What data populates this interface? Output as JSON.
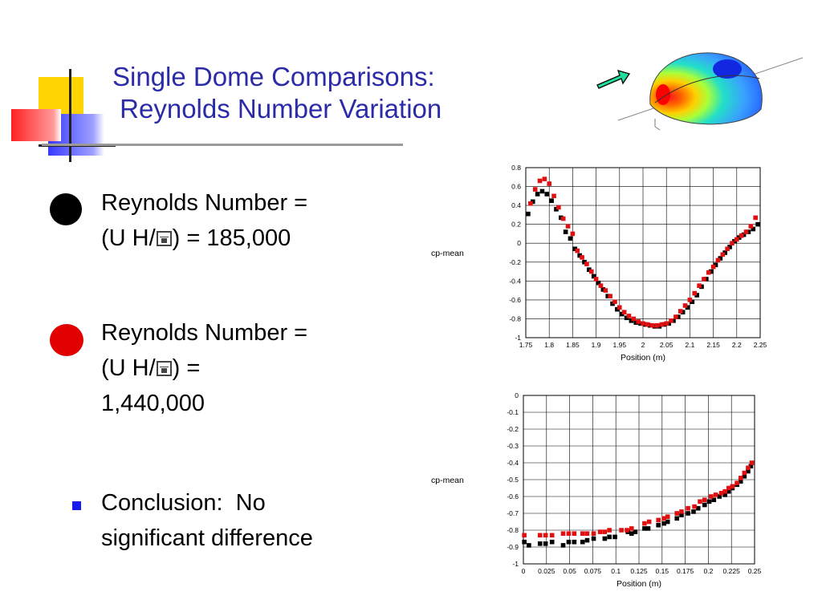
{
  "slide": {
    "title_line1": "Single Dome Comparisons:",
    "title_line2": " Reynolds Number Variation",
    "bullets": [
      {
        "marker": "black-circle",
        "line1": "Reynolds Number =",
        "line2a": "(U H/",
        "line2b": ") = 185,000",
        "glyph_icon": "floppy-glyph-icon"
      },
      {
        "marker": "red-circle",
        "line1": "Reynolds Number =",
        "line2a": "(U H/",
        "line2b": ") =",
        "line3": "1,440,000",
        "glyph_icon": "floppy-glyph-icon"
      },
      {
        "marker": "blue-square",
        "line1": "Conclusion:  No",
        "line2": "significant difference"
      }
    ]
  },
  "colors": {
    "title": "#2b2ba8",
    "series_low": "#000000",
    "series_high": "#e01010",
    "accent_red": "#e00000",
    "bullet_blue": "#1a1aee"
  },
  "chart_data": [
    {
      "type": "scatter",
      "title": "",
      "xlabel": "Position (m)",
      "ylabel": "cp-mean",
      "xlim": [
        1.75,
        2.25
      ],
      "ylim": [
        -1,
        0.8
      ],
      "xticks": [
        "1.75",
        "1.8",
        "1.85",
        "1.9",
        "1.95",
        "2",
        "2.05",
        "2.1",
        "2.15",
        "2.2",
        "2.25"
      ],
      "yticks": [
        "0.8",
        "0.6",
        "0.4",
        "0.2",
        "0",
        "-0.2",
        "-0.4",
        "-0.6",
        "-0.8",
        "-1"
      ],
      "grid": true,
      "series": [
        {
          "color": "#000000",
          "x": [
            1.755,
            1.765,
            1.775,
            1.785,
            1.795,
            1.805,
            1.815,
            1.825,
            1.835,
            1.845,
            1.855,
            1.865,
            1.875,
            1.885,
            1.895,
            1.905,
            1.915,
            1.925,
            1.935,
            1.945,
            1.955,
            1.965,
            1.975,
            1.985,
            1.995,
            2.005,
            2.015,
            2.025,
            2.035,
            2.045,
            2.055,
            2.065,
            2.075,
            2.085,
            2.095,
            2.105,
            2.115,
            2.125,
            2.135,
            2.145,
            2.155,
            2.165,
            2.175,
            2.185,
            2.195,
            2.205,
            2.215,
            2.225,
            2.235,
            2.245
          ],
          "y": [
            0.31,
            0.44,
            0.52,
            0.55,
            0.52,
            0.45,
            0.36,
            0.27,
            0.12,
            0.05,
            -0.06,
            -0.13,
            -0.2,
            -0.28,
            -0.35,
            -0.42,
            -0.49,
            -0.56,
            -0.64,
            -0.7,
            -0.75,
            -0.79,
            -0.82,
            -0.84,
            -0.85,
            -0.86,
            -0.87,
            -0.88,
            -0.88,
            -0.86,
            -0.85,
            -0.82,
            -0.78,
            -0.73,
            -0.68,
            -0.62,
            -0.55,
            -0.46,
            -0.38,
            -0.3,
            -0.23,
            -0.16,
            -0.1,
            -0.04,
            0.02,
            0.06,
            0.09,
            0.12,
            0.15,
            0.2
          ]
        },
        {
          "color": "#e01010",
          "x": [
            1.76,
            1.77,
            1.78,
            1.79,
            1.8,
            1.81,
            1.82,
            1.83,
            1.84,
            1.85,
            1.86,
            1.87,
            1.88,
            1.89,
            1.9,
            1.91,
            1.92,
            1.93,
            1.94,
            1.95,
            1.96,
            1.97,
            1.98,
            1.99,
            2.0,
            2.01,
            2.02,
            2.03,
            2.04,
            2.05,
            2.06,
            2.07,
            2.08,
            2.09,
            2.1,
            2.11,
            2.12,
            2.13,
            2.14,
            2.15,
            2.16,
            2.17,
            2.18,
            2.19,
            2.2,
            2.21,
            2.22,
            2.23,
            2.24
          ],
          "y": [
            0.42,
            0.57,
            0.66,
            0.68,
            0.63,
            0.5,
            0.38,
            0.26,
            0.18,
            0.1,
            -0.08,
            -0.15,
            -0.22,
            -0.3,
            -0.38,
            -0.45,
            -0.5,
            -0.56,
            -0.62,
            -0.68,
            -0.73,
            -0.77,
            -0.8,
            -0.83,
            -0.85,
            -0.86,
            -0.87,
            -0.87,
            -0.86,
            -0.85,
            -0.82,
            -0.78,
            -0.72,
            -0.66,
            -0.6,
            -0.53,
            -0.45,
            -0.38,
            -0.31,
            -0.25,
            -0.18,
            -0.12,
            -0.06,
            0.0,
            0.04,
            0.08,
            0.12,
            0.18,
            0.27
          ]
        }
      ]
    },
    {
      "type": "scatter",
      "title": "",
      "xlabel": "Position (m)",
      "ylabel": "cp-mean",
      "xlim": [
        0,
        0.25
      ],
      "ylim": [
        -1,
        0
      ],
      "xticks": [
        "0",
        "0.025",
        "0.05",
        "0.075",
        "0.1",
        "0.125",
        "0.15",
        "0.175",
        "0.2",
        "0.225",
        "0.25"
      ],
      "yticks": [
        "0",
        "-0.1",
        "-0.2",
        "-0.3",
        "-0.4",
        "-0.5",
        "-0.6",
        "-0.7",
        "-0.8",
        "-0.9",
        "-1"
      ],
      "grid": true,
      "series": [
        {
          "color": "#000000",
          "x": [
            0.001,
            0.006,
            0.018,
            0.024,
            0.031,
            0.043,
            0.049,
            0.055,
            0.064,
            0.069,
            0.076,
            0.088,
            0.093,
            0.099,
            0.113,
            0.117,
            0.121,
            0.131,
            0.135,
            0.146,
            0.152,
            0.156,
            0.166,
            0.171,
            0.178,
            0.184,
            0.189,
            0.196,
            0.201,
            0.206,
            0.212,
            0.218,
            0.222,
            0.226,
            0.231,
            0.235,
            0.239,
            0.243,
            0.246
          ],
          "y": [
            -0.87,
            -0.89,
            -0.88,
            -0.88,
            -0.87,
            -0.89,
            -0.87,
            -0.87,
            -0.87,
            -0.86,
            -0.85,
            -0.85,
            -0.84,
            -0.84,
            -0.81,
            -0.82,
            -0.81,
            -0.79,
            -0.79,
            -0.77,
            -0.76,
            -0.75,
            -0.73,
            -0.71,
            -0.7,
            -0.69,
            -0.67,
            -0.65,
            -0.63,
            -0.62,
            -0.6,
            -0.59,
            -0.57,
            -0.55,
            -0.53,
            -0.51,
            -0.48,
            -0.45,
            -0.42
          ]
        },
        {
          "color": "#e01010",
          "x": [
            0.001,
            0.018,
            0.024,
            0.031,
            0.043,
            0.049,
            0.055,
            0.064,
            0.069,
            0.076,
            0.083,
            0.088,
            0.093,
            0.106,
            0.112,
            0.117,
            0.131,
            0.136,
            0.146,
            0.152,
            0.156,
            0.166,
            0.171,
            0.178,
            0.185,
            0.191,
            0.196,
            0.203,
            0.208,
            0.214,
            0.218,
            0.222,
            0.226,
            0.231,
            0.235,
            0.239,
            0.243,
            0.247
          ],
          "y": [
            -0.83,
            -0.83,
            -0.83,
            -0.83,
            -0.82,
            -0.82,
            -0.82,
            -0.82,
            -0.82,
            -0.82,
            -0.81,
            -0.81,
            -0.8,
            -0.8,
            -0.8,
            -0.79,
            -0.76,
            -0.75,
            -0.74,
            -0.73,
            -0.72,
            -0.7,
            -0.69,
            -0.67,
            -0.66,
            -0.63,
            -0.62,
            -0.6,
            -0.59,
            -0.58,
            -0.57,
            -0.55,
            -0.54,
            -0.52,
            -0.49,
            -0.46,
            -0.43,
            -0.4
          ]
        }
      ]
    }
  ]
}
